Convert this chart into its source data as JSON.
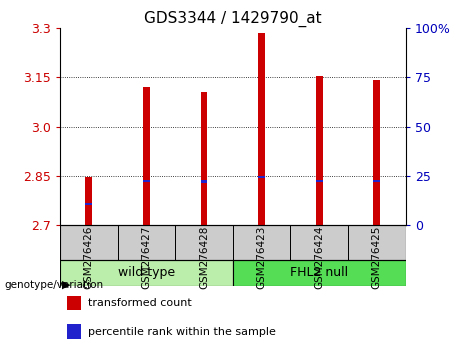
{
  "title": "GDS3344 / 1429790_at",
  "categories": [
    "GSM276426",
    "GSM276427",
    "GSM276428",
    "GSM276423",
    "GSM276424",
    "GSM276425"
  ],
  "bar_bottoms": [
    2.7,
    2.7,
    2.7,
    2.7,
    2.7,
    2.7
  ],
  "bar_tops": [
    2.845,
    3.122,
    3.105,
    3.285,
    3.153,
    3.143
  ],
  "blue_markers": [
    2.763,
    2.833,
    2.832,
    2.845,
    2.834,
    2.833
  ],
  "ylim_left": [
    2.7,
    3.3
  ],
  "yticks_left": [
    2.7,
    2.85,
    3.0,
    3.15,
    3.3
  ],
  "yticks_right": [
    0,
    25,
    50,
    75,
    100
  ],
  "bar_color": "#cc0000",
  "blue_color": "#2222cc",
  "bar_width": 0.12,
  "groups": [
    {
      "label": "wild type",
      "indices": [
        0,
        1,
        2
      ],
      "color": "#bbeeaa"
    },
    {
      "label": "FHL2 null",
      "indices": [
        3,
        4,
        5
      ],
      "color": "#55dd55"
    }
  ],
  "group_label": "genotype/variation",
  "legend_items": [
    {
      "label": "transformed count",
      "color": "#cc0000"
    },
    {
      "label": "percentile rank within the sample",
      "color": "#2222cc"
    }
  ],
  "bg_xtick_area": "#cccccc",
  "left_tick_color": "#cc0000",
  "right_tick_color": "#0000bb",
  "title_fontsize": 11,
  "tick_fontsize": 9
}
